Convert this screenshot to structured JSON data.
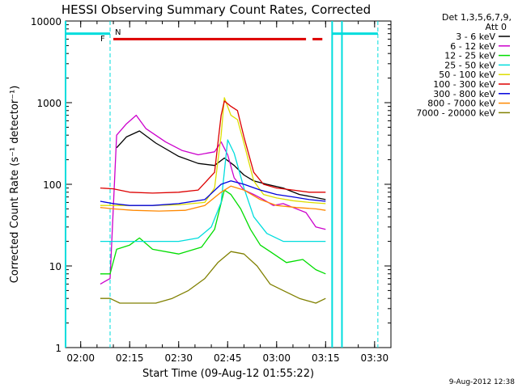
{
  "chart_data": {
    "type": "line",
    "title": "HESSI Observing Summary Count Rates, Corrected",
    "xlabel": "Start Time (09-Aug-12 01:55:22)",
    "ylabel": "Corrected Count Rate (s⁻¹ detector⁻¹)",
    "x_ticks": [
      "02:00",
      "02:15",
      "02:30",
      "02:45",
      "03:00",
      "03:15",
      "03:30"
    ],
    "y_ticks": [
      "1",
      "10",
      "100",
      "1000",
      "10000"
    ],
    "y_scale": "log",
    "ylim": [
      1,
      10000
    ],
    "xlim": [
      "01:55:22",
      "03:35:00"
    ],
    "legend_header": [
      "Det 1,3,5,6,7,9,",
      "Att 0"
    ],
    "legend_position": "right",
    "footer_date": "9-Aug-2012 12:38",
    "flags": {
      "F": "F",
      "N": "N"
    },
    "series": [
      {
        "name": "3 - 6 keV",
        "color": "#000000",
        "x": [
          "02:11",
          "02:14",
          "02:18",
          "02:23",
          "02:30",
          "02:36",
          "02:41",
          "02:44",
          "02:47",
          "02:50",
          "02:53",
          "02:57",
          "03:02",
          "03:07",
          "03:11",
          "03:15"
        ],
        "y": [
          280,
          380,
          450,
          320,
          220,
          180,
          170,
          210,
          170,
          130,
          110,
          100,
          90,
          75,
          70,
          65
        ]
      },
      {
        "name": "6 - 12 keV",
        "color": "#cc00cc",
        "x": [
          "02:06",
          "02:09",
          "02:11",
          "02:14",
          "02:17",
          "02:20",
          "02:26",
          "02:31",
          "02:36",
          "02:41",
          "02:43",
          "02:45",
          "02:47",
          "02:50",
          "02:53",
          "02:56",
          "02:59",
          "03:02",
          "03:05",
          "03:09",
          "03:12",
          "03:15"
        ],
        "y": [
          6,
          7,
          400,
          550,
          700,
          480,
          330,
          260,
          230,
          250,
          330,
          230,
          120,
          85,
          75,
          65,
          55,
          58,
          52,
          45,
          30,
          28
        ]
      },
      {
        "name": "12 - 25 keV",
        "color": "#00dd00",
        "x": [
          "02:06",
          "02:09",
          "02:11",
          "02:15",
          "02:18",
          "02:22",
          "02:30",
          "02:37",
          "02:41",
          "02:44",
          "02:46",
          "02:49",
          "02:52",
          "02:55",
          "02:58",
          "03:03",
          "03:08",
          "03:12",
          "03:15"
        ],
        "y": [
          8,
          8,
          16,
          18,
          22,
          16,
          14,
          17,
          28,
          85,
          75,
          50,
          28,
          18,
          15,
          11,
          12,
          9,
          8
        ]
      },
      {
        "name": "25 - 50 keV",
        "color": "#00dddd",
        "x": [
          "02:06",
          "02:09",
          "02:12",
          "02:17",
          "02:22",
          "02:30",
          "02:36",
          "02:40",
          "02:43",
          "02:45",
          "02:47",
          "02:50",
          "02:53",
          "02:57",
          "03:02",
          "03:08",
          "03:12",
          "03:15"
        ],
        "y": [
          20,
          20,
          20,
          20,
          20,
          20,
          22,
          30,
          60,
          350,
          240,
          90,
          40,
          25,
          20,
          20,
          20,
          20
        ]
      },
      {
        "name": "50 - 100 keV",
        "color": "#dddd00",
        "x": [
          "02:06",
          "02:10",
          "02:15",
          "02:22",
          "02:30",
          "02:38",
          "02:41",
          "02:43",
          "02:44",
          "02:46",
          "02:48",
          "02:50",
          "02:53",
          "02:56",
          "03:00",
          "03:05",
          "03:10",
          "03:15"
        ],
        "y": [
          55,
          55,
          55,
          55,
          56,
          60,
          90,
          400,
          1150,
          700,
          620,
          320,
          110,
          75,
          68,
          63,
          60,
          58
        ]
      },
      {
        "name": "100 - 300 keV",
        "color": "#dd0000",
        "x": [
          "02:06",
          "02:10",
          "02:15",
          "02:22",
          "02:30",
          "02:36",
          "02:41",
          "02:43",
          "02:44",
          "02:46",
          "02:48",
          "02:50",
          "02:53",
          "02:56",
          "03:00",
          "03:05",
          "03:10",
          "03:15"
        ],
        "y": [
          90,
          88,
          80,
          78,
          80,
          85,
          140,
          700,
          1050,
          900,
          800,
          380,
          140,
          100,
          90,
          85,
          80,
          80
        ]
      },
      {
        "name": "300 - 800 keV",
        "color": "#0000dd",
        "x": [
          "02:06",
          "02:10",
          "02:15",
          "02:22",
          "02:30",
          "02:38",
          "02:43",
          "02:46",
          "02:50",
          "02:55",
          "03:00",
          "03:05",
          "03:10",
          "03:15"
        ],
        "y": [
          62,
          58,
          55,
          55,
          58,
          65,
          100,
          110,
          100,
          85,
          75,
          70,
          65,
          62
        ]
      },
      {
        "name": "800 - 7000 keV",
        "color": "#ff8800",
        "x": [
          "02:06",
          "02:10",
          "02:16",
          "02:24",
          "02:32",
          "02:38",
          "02:43",
          "02:46",
          "02:50",
          "02:55",
          "03:00",
          "03:06",
          "03:12",
          "03:15"
        ],
        "y": [
          52,
          50,
          48,
          47,
          48,
          55,
          80,
          95,
          85,
          65,
          55,
          52,
          50,
          48
        ]
      },
      {
        "name": "7000 - 20000 keV",
        "color": "#808000",
        "x": [
          "02:06",
          "02:09",
          "02:12",
          "02:17",
          "02:23",
          "02:28",
          "02:33",
          "02:38",
          "02:42",
          "02:46",
          "02:50",
          "02:54",
          "02:58",
          "03:02",
          "03:07",
          "03:12",
          "03:15"
        ],
        "y": [
          4,
          4,
          3.5,
          3.5,
          3.5,
          4,
          5,
          7,
          11,
          15,
          14,
          10,
          6,
          5,
          4,
          3.5,
          4
        ]
      }
    ]
  }
}
